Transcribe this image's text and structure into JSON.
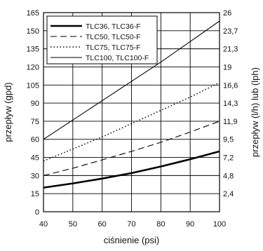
{
  "chart_data": {
    "type": "line",
    "xlabel": "ciśnienie (psi)",
    "ylabel": "przepływ (gpd)",
    "y2label": "przepływ (l/h) lub (lph)",
    "xlim": [
      40,
      100
    ],
    "ylim": [
      0,
      165
    ],
    "grid": true,
    "legend_position": "top-left",
    "x_ticks": [
      "40",
      "50",
      "60",
      "70",
      "80",
      "90",
      "100"
    ],
    "y_ticks": [
      "0",
      "15",
      "30",
      "45",
      "60",
      "75",
      "90",
      "105",
      "120",
      "135",
      "150",
      "165"
    ],
    "y2_ticks": [
      "2,4",
      "4,8",
      "7,2",
      "9,5",
      "11,9",
      "14,3",
      "16,6",
      "19",
      "21,3",
      "23,7",
      "26"
    ],
    "series": [
      {
        "name": "TLC36, TLC36-F",
        "style": "solid-thick",
        "x": [
          40,
          50,
          60,
          70,
          80,
          90,
          100
        ],
        "y": [
          20,
          23.5,
          27.5,
          32,
          37.5,
          43.5,
          50
        ]
      },
      {
        "name": "TLC50, TLC50-F",
        "style": "dashed",
        "x": [
          40,
          50,
          60,
          70,
          80,
          90,
          100
        ],
        "y": [
          30,
          36,
          43,
          50,
          57.5,
          66,
          75
        ]
      },
      {
        "name": "TLC75, TLC75-F",
        "style": "dotted",
        "x": [
          40,
          50,
          60,
          70,
          80,
          90,
          100
        ],
        "y": [
          42,
          52,
          62,
          73,
          84,
          95,
          107
        ]
      },
      {
        "name": "TLC100, TLC100-F",
        "style": "solid-thin",
        "x": [
          40,
          50,
          60,
          70,
          80,
          90,
          100
        ],
        "y": [
          60,
          76,
          92,
          108,
          124,
          141,
          158
        ]
      }
    ]
  }
}
